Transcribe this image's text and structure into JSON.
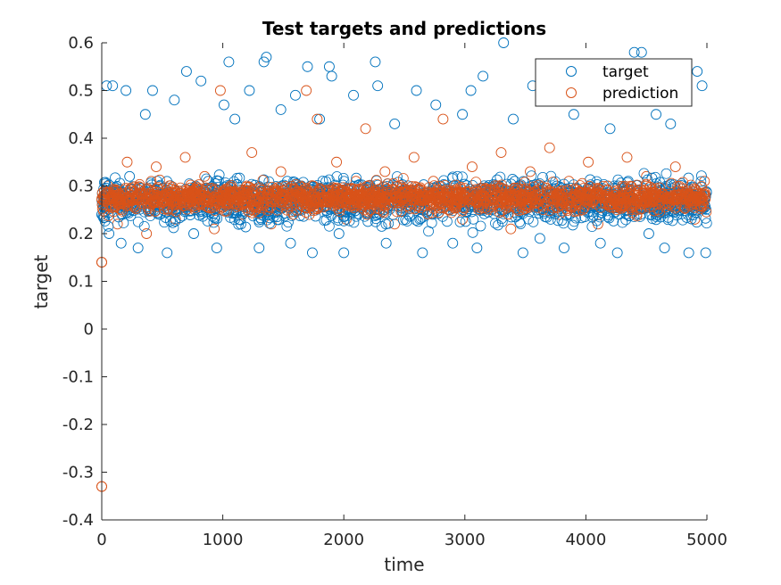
{
  "chart_data": {
    "type": "scatter",
    "title": "Test targets and predictions",
    "xlabel": "time",
    "ylabel": "target",
    "xlim": [
      0,
      5000
    ],
    "ylim": [
      -0.4,
      0.6
    ],
    "xticks": [
      0,
      1000,
      2000,
      3000,
      4000,
      5000
    ],
    "xtick_labels": [
      "0",
      "1000",
      "2000",
      "3000",
      "4000",
      "5000"
    ],
    "yticks": [
      -0.4,
      -0.3,
      -0.2,
      -0.1,
      0,
      0.1,
      0.2,
      0.3,
      0.4,
      0.5,
      0.6
    ],
    "ytick_labels": [
      "-0.4",
      "-0.3",
      "-0.2",
      "-0.1",
      "0",
      "0.1",
      "0.2",
      "0.3",
      "0.4",
      "0.5",
      "0.6"
    ],
    "grid": false,
    "legend_position": "top-right",
    "marker": "open-circle",
    "series": [
      {
        "name": "target",
        "color": "#0072BD",
        "x": [
          0,
          40,
          60,
          90,
          120,
          160,
          200,
          230,
          300,
          360,
          420,
          480,
          540,
          600,
          700,
          760,
          820,
          880,
          950,
          1010,
          1050,
          1100,
          1150,
          1220,
          1300,
          1340,
          1360,
          1420,
          1480,
          1560,
          1600,
          1650,
          1700,
          1740,
          1800,
          1880,
          1900,
          1960,
          2000,
          2080,
          2160,
          2260,
          2280,
          2350,
          2420,
          2500,
          2600,
          2650,
          2760,
          2800,
          2900,
          2980,
          3050,
          3100,
          3150,
          3220,
          3320,
          3400,
          3480,
          3500,
          3560,
          3620,
          3700,
          3760,
          3820,
          3900,
          3980,
          4050,
          4120,
          4200,
          4260,
          4350,
          4400,
          4460,
          4520,
          4580,
          4650,
          4700,
          4780,
          4850,
          4920,
          4960,
          4990
        ],
        "y": [
          0.24,
          0.51,
          0.2,
          0.51,
          0.27,
          0.18,
          0.5,
          0.32,
          0.17,
          0.45,
          0.5,
          0.26,
          0.16,
          0.48,
          0.54,
          0.2,
          0.52,
          0.31,
          0.17,
          0.47,
          0.56,
          0.44,
          0.22,
          0.5,
          0.17,
          0.56,
          0.57,
          0.28,
          0.46,
          0.18,
          0.49,
          0.3,
          0.55,
          0.16,
          0.44,
          0.55,
          0.53,
          0.2,
          0.16,
          0.49,
          0.28,
          0.56,
          0.51,
          0.18,
          0.43,
          0.27,
          0.5,
          0.16,
          0.47,
          0.3,
          0.18,
          0.45,
          0.5,
          0.17,
          0.53,
          0.29,
          0.6,
          0.44,
          0.16,
          0.26,
          0.51,
          0.19,
          0.48,
          0.3,
          0.17,
          0.45,
          0.28,
          0.5,
          0.18,
          0.42,
          0.16,
          0.31,
          0.58,
          0.58,
          0.2,
          0.45,
          0.17,
          0.43,
          0.25,
          0.16,
          0.54,
          0.51,
          0.16
        ]
      },
      {
        "name": "prediction",
        "color": "#D95319",
        "x": [
          0,
          0,
          50,
          130,
          210,
          290,
          370,
          450,
          530,
          610,
          690,
          770,
          850,
          930,
          980,
          1080,
          1160,
          1240,
          1320,
          1400,
          1480,
          1560,
          1640,
          1690,
          1780,
          1860,
          1940,
          2020,
          2100,
          2180,
          2260,
          2340,
          2420,
          2500,
          2580,
          2660,
          2740,
          2820,
          2900,
          2980,
          3060,
          3140,
          3220,
          3300,
          3380,
          3460,
          3540,
          3620,
          3700,
          3780,
          3860,
          3940,
          4020,
          4100,
          4180,
          4260,
          4340,
          4420,
          4500,
          4580,
          4660,
          4740,
          4820,
          4900,
          4980
        ],
        "y": [
          -0.33,
          0.14,
          0.3,
          0.22,
          0.35,
          0.26,
          0.2,
          0.34,
          0.28,
          0.23,
          0.36,
          0.25,
          0.32,
          0.21,
          0.5,
          0.29,
          0.24,
          0.37,
          0.27,
          0.22,
          0.33,
          0.26,
          0.3,
          0.5,
          0.44,
          0.28,
          0.35,
          0.23,
          0.31,
          0.42,
          0.26,
          0.33,
          0.22,
          0.29,
          0.36,
          0.25,
          0.31,
          0.44,
          0.27,
          0.23,
          0.34,
          0.29,
          0.25,
          0.37,
          0.21,
          0.3,
          0.33,
          0.26,
          0.38,
          0.24,
          0.31,
          0.28,
          0.35,
          0.22,
          0.3,
          0.27,
          0.36,
          0.24,
          0.32,
          0.29,
          0.25,
          0.34,
          0.28,
          0.23,
          0.31
        ]
      }
    ]
  }
}
